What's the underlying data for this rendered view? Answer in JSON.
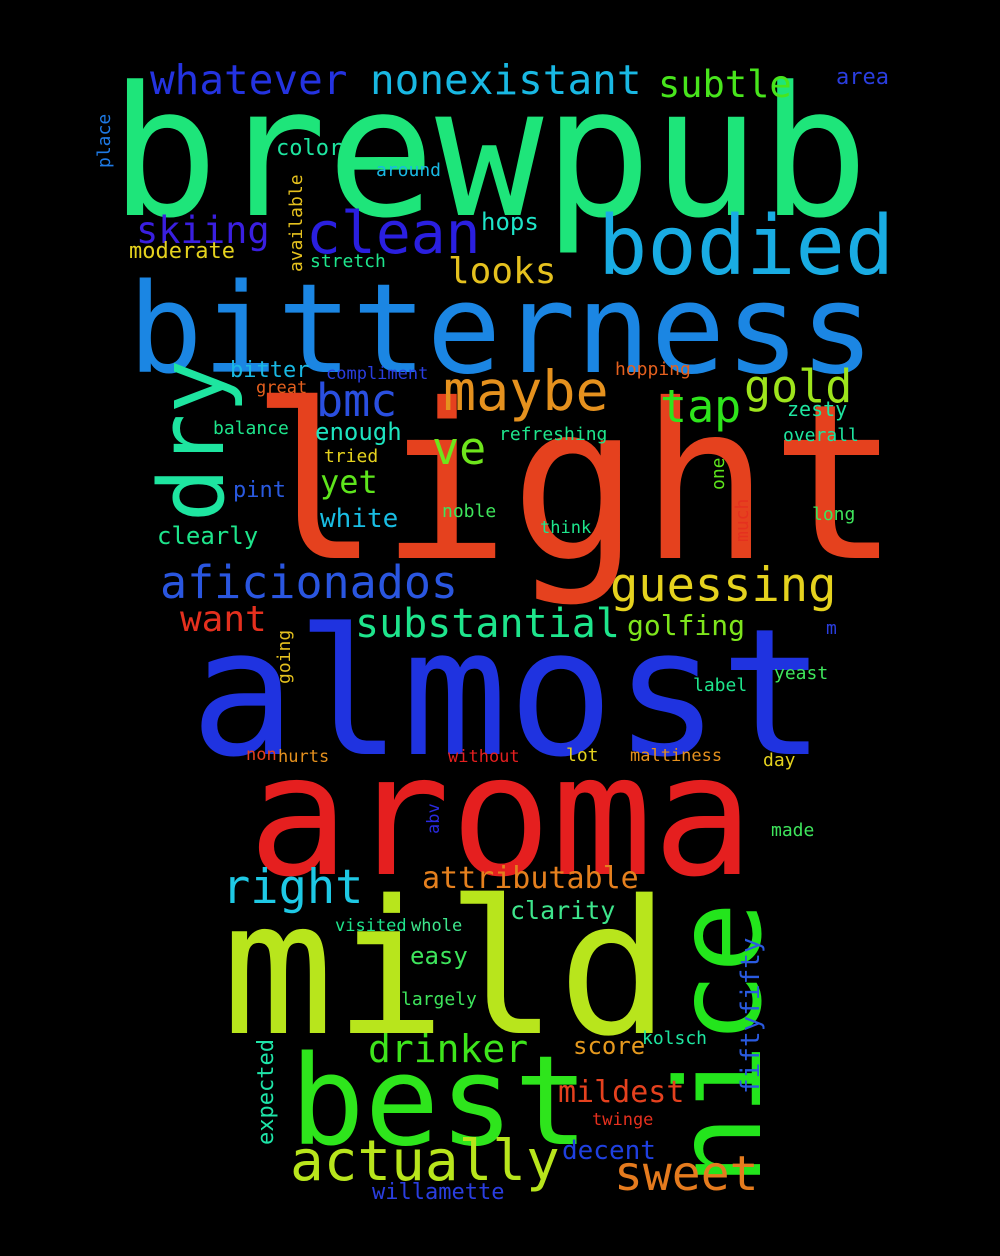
{
  "background": "#000000",
  "words": [
    {
      "text": "brewpub",
      "color": "#1ee57a"
    },
    {
      "text": "light",
      "color": "#e5411e"
    },
    {
      "text": "almost",
      "color": "#1f33e0"
    },
    {
      "text": "bitterness",
      "color": "#1b86e3"
    },
    {
      "text": "aroma",
      "color": "#e51f1f"
    },
    {
      "text": "mild",
      "color": "#b8e51c"
    },
    {
      "text": "best",
      "color": "#2ee51c"
    },
    {
      "text": "nice",
      "color": "#23e51c"
    },
    {
      "text": "bodied",
      "color": "#19ace3"
    },
    {
      "text": "dry",
      "color": "#1ee5a0"
    },
    {
      "text": "clean",
      "color": "#2a1fe0"
    },
    {
      "text": "maybe",
      "color": "#e5911e"
    },
    {
      "text": "whatever",
      "color": "#2433e0"
    },
    {
      "text": "nonexistant",
      "color": "#19b8e3"
    },
    {
      "text": "guessing",
      "color": "#e5d21e"
    },
    {
      "text": "aficionados",
      "color": "#2a56e0"
    },
    {
      "text": "actually",
      "color": "#b8e51c"
    },
    {
      "text": "sweet",
      "color": "#e57b1e"
    },
    {
      "text": "substantial",
      "color": "#1ee58c"
    },
    {
      "text": "right",
      "color": "#1ec9e5"
    },
    {
      "text": "drinker",
      "color": "#3ee51c"
    },
    {
      "text": "attributable",
      "color": "#e5801e"
    },
    {
      "text": "gold",
      "color": "#9ee51c"
    },
    {
      "text": "tap",
      "color": "#2ee51c"
    },
    {
      "text": "bmc",
      "color": "#2a4fe0"
    },
    {
      "text": "ve",
      "color": "#6ee51c"
    },
    {
      "text": "subtle",
      "color": "#48e51c"
    },
    {
      "text": "skiing",
      "color": "#3a1fe0"
    },
    {
      "text": "looks",
      "color": "#e5c11e"
    },
    {
      "text": "want",
      "color": "#e5301e"
    },
    {
      "text": "mildest",
      "color": "#e5411e"
    },
    {
      "text": "yet",
      "color": "#5ee51c"
    },
    {
      "text": "decent",
      "color": "#1f40e0"
    },
    {
      "text": "golfing",
      "color": "#7ee51c"
    },
    {
      "text": "clarity",
      "color": "#3ee58c"
    },
    {
      "text": "white",
      "color": "#19bde3"
    },
    {
      "text": "fiftyfifty",
      "color": "#2a5ae0"
    },
    {
      "text": "willamette",
      "color": "#2a3ee0"
    },
    {
      "text": "score",
      "color": "#e5991e"
    },
    {
      "text": "easy",
      "color": "#3ee55c"
    },
    {
      "text": "enough",
      "color": "#1ee5c0"
    },
    {
      "text": "expected",
      "color": "#1ee5a8"
    },
    {
      "text": "area",
      "color": "#2a3ee0"
    },
    {
      "text": "hops",
      "color": "#1ee5c8"
    },
    {
      "text": "clearly",
      "color": "#1ee58c"
    },
    {
      "text": "moderate",
      "color": "#e5d21e"
    },
    {
      "text": "color",
      "color": "#1ee5a0"
    },
    {
      "text": "bitter",
      "color": "#19b8e3"
    },
    {
      "text": "pint",
      "color": "#2a5ae0"
    },
    {
      "text": "around",
      "color": "#19b8e3"
    },
    {
      "text": "stretch",
      "color": "#1ee58c"
    },
    {
      "text": "available",
      "color": "#e5c11e"
    },
    {
      "text": "place",
      "color": "#1e7ae5"
    },
    {
      "text": "compliment",
      "color": "#2a3ee0"
    },
    {
      "text": "great",
      "color": "#e5601e"
    },
    {
      "text": "hopping",
      "color": "#e5601e"
    },
    {
      "text": "zesty",
      "color": "#1ee5a0"
    },
    {
      "text": "overall",
      "color": "#1ee5a0"
    },
    {
      "text": "balance",
      "color": "#1ee58c"
    },
    {
      "text": "refreshing",
      "color": "#1ee58c"
    },
    {
      "text": "tried",
      "color": "#e5d21e"
    },
    {
      "text": "one",
      "color": "#5ee51c"
    },
    {
      "text": "noble",
      "color": "#3ee55c"
    },
    {
      "text": "long",
      "color": "#3ee55c"
    },
    {
      "text": "think",
      "color": "#1ee58c"
    },
    {
      "text": "much",
      "color": "#e5301e"
    },
    {
      "text": "going",
      "color": "#e5c11e"
    },
    {
      "text": "m",
      "color": "#2a3ee0"
    },
    {
      "text": "label",
      "color": "#1ee58c"
    },
    {
      "text": "yeast",
      "color": "#3ee55c"
    },
    {
      "text": "non",
      "color": "#e5411e"
    },
    {
      "text": "hurts",
      "color": "#e5911e"
    },
    {
      "text": "without",
      "color": "#e51f1f"
    },
    {
      "text": "lot",
      "color": "#e5d21e"
    },
    {
      "text": "maltiness",
      "color": "#e5911e"
    },
    {
      "text": "day",
      "color": "#e5d21e"
    },
    {
      "text": "abv",
      "color": "#2a2ae0"
    },
    {
      "text": "made",
      "color": "#3ee55c"
    },
    {
      "text": "visited",
      "color": "#1ee58c"
    },
    {
      "text": "whole",
      "color": "#3ee58c"
    },
    {
      "text": "largely",
      "color": "#3ee55c"
    },
    {
      "text": "kolsch",
      "color": "#1ee5a0"
    },
    {
      "text": "twinge",
      "color": "#e5301e"
    }
  ]
}
